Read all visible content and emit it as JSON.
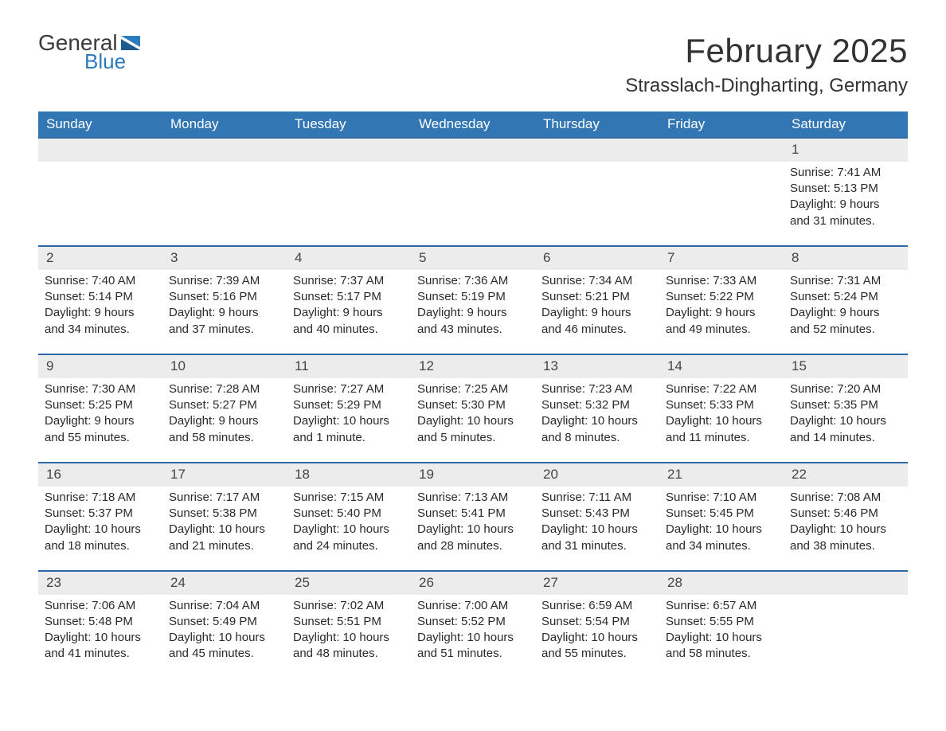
{
  "logo": {
    "general": "General",
    "blue": "Blue"
  },
  "title": "February 2025",
  "location": "Strasslach-Dingharting, Germany",
  "colors": {
    "header_bg": "#3277b3",
    "header_text": "#ffffff",
    "row_divider": "#2b68a4",
    "daynum_bg": "#ececec",
    "logo_blue": "#2b7bbd",
    "text": "#2a2a2a",
    "page_bg": "#ffffff"
  },
  "weekdays": [
    "Sunday",
    "Monday",
    "Tuesday",
    "Wednesday",
    "Thursday",
    "Friday",
    "Saturday"
  ],
  "weeks": [
    [
      null,
      null,
      null,
      null,
      null,
      null,
      {
        "n": "1",
        "sr": "7:41 AM",
        "ss": "5:13 PM",
        "dl": "9 hours and 31 minutes."
      }
    ],
    [
      {
        "n": "2",
        "sr": "7:40 AM",
        "ss": "5:14 PM",
        "dl": "9 hours and 34 minutes."
      },
      {
        "n": "3",
        "sr": "7:39 AM",
        "ss": "5:16 PM",
        "dl": "9 hours and 37 minutes."
      },
      {
        "n": "4",
        "sr": "7:37 AM",
        "ss": "5:17 PM",
        "dl": "9 hours and 40 minutes."
      },
      {
        "n": "5",
        "sr": "7:36 AM",
        "ss": "5:19 PM",
        "dl": "9 hours and 43 minutes."
      },
      {
        "n": "6",
        "sr": "7:34 AM",
        "ss": "5:21 PM",
        "dl": "9 hours and 46 minutes."
      },
      {
        "n": "7",
        "sr": "7:33 AM",
        "ss": "5:22 PM",
        "dl": "9 hours and 49 minutes."
      },
      {
        "n": "8",
        "sr": "7:31 AM",
        "ss": "5:24 PM",
        "dl": "9 hours and 52 minutes."
      }
    ],
    [
      {
        "n": "9",
        "sr": "7:30 AM",
        "ss": "5:25 PM",
        "dl": "9 hours and 55 minutes."
      },
      {
        "n": "10",
        "sr": "7:28 AM",
        "ss": "5:27 PM",
        "dl": "9 hours and 58 minutes."
      },
      {
        "n": "11",
        "sr": "7:27 AM",
        "ss": "5:29 PM",
        "dl": "10 hours and 1 minute."
      },
      {
        "n": "12",
        "sr": "7:25 AM",
        "ss": "5:30 PM",
        "dl": "10 hours and 5 minutes."
      },
      {
        "n": "13",
        "sr": "7:23 AM",
        "ss": "5:32 PM",
        "dl": "10 hours and 8 minutes."
      },
      {
        "n": "14",
        "sr": "7:22 AM",
        "ss": "5:33 PM",
        "dl": "10 hours and 11 minutes."
      },
      {
        "n": "15",
        "sr": "7:20 AM",
        "ss": "5:35 PM",
        "dl": "10 hours and 14 minutes."
      }
    ],
    [
      {
        "n": "16",
        "sr": "7:18 AM",
        "ss": "5:37 PM",
        "dl": "10 hours and 18 minutes."
      },
      {
        "n": "17",
        "sr": "7:17 AM",
        "ss": "5:38 PM",
        "dl": "10 hours and 21 minutes."
      },
      {
        "n": "18",
        "sr": "7:15 AM",
        "ss": "5:40 PM",
        "dl": "10 hours and 24 minutes."
      },
      {
        "n": "19",
        "sr": "7:13 AM",
        "ss": "5:41 PM",
        "dl": "10 hours and 28 minutes."
      },
      {
        "n": "20",
        "sr": "7:11 AM",
        "ss": "5:43 PM",
        "dl": "10 hours and 31 minutes."
      },
      {
        "n": "21",
        "sr": "7:10 AM",
        "ss": "5:45 PM",
        "dl": "10 hours and 34 minutes."
      },
      {
        "n": "22",
        "sr": "7:08 AM",
        "ss": "5:46 PM",
        "dl": "10 hours and 38 minutes."
      }
    ],
    [
      {
        "n": "23",
        "sr": "7:06 AM",
        "ss": "5:48 PM",
        "dl": "10 hours and 41 minutes."
      },
      {
        "n": "24",
        "sr": "7:04 AM",
        "ss": "5:49 PM",
        "dl": "10 hours and 45 minutes."
      },
      {
        "n": "25",
        "sr": "7:02 AM",
        "ss": "5:51 PM",
        "dl": "10 hours and 48 minutes."
      },
      {
        "n": "26",
        "sr": "7:00 AM",
        "ss": "5:52 PM",
        "dl": "10 hours and 51 minutes."
      },
      {
        "n": "27",
        "sr": "6:59 AM",
        "ss": "5:54 PM",
        "dl": "10 hours and 55 minutes."
      },
      {
        "n": "28",
        "sr": "6:57 AM",
        "ss": "5:55 PM",
        "dl": "10 hours and 58 minutes."
      },
      null
    ]
  ],
  "labels": {
    "sunrise": "Sunrise: ",
    "sunset": "Sunset: ",
    "daylight": "Daylight: "
  }
}
